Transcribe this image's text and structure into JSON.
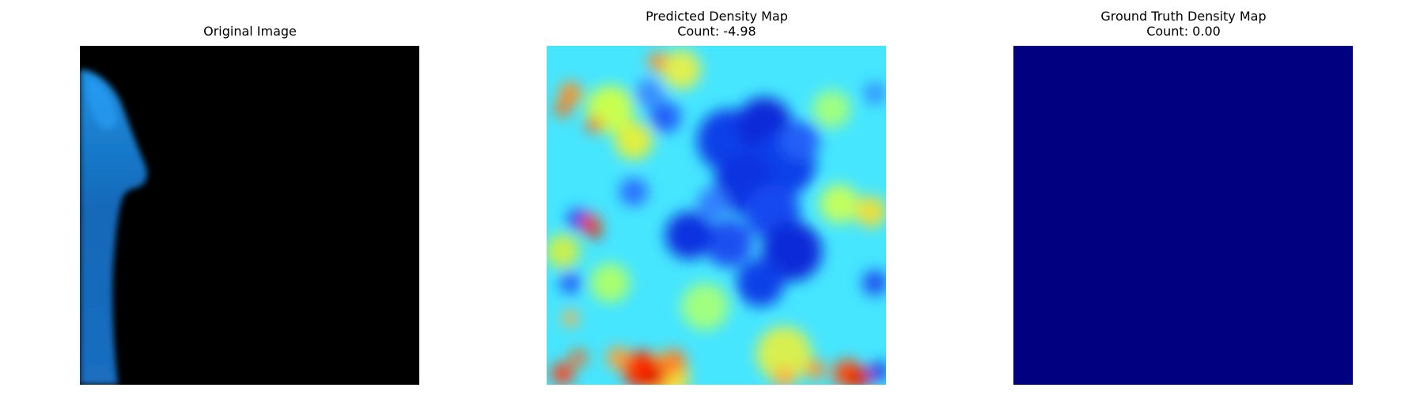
{
  "figure": {
    "panels": [
      {
        "title": "Original Image",
        "subtitle": ""
      },
      {
        "title": "Predicted Density Map",
        "subtitle": "Count: -4.98"
      },
      {
        "title": "Ground Truth Density Map",
        "subtitle": "Count: 0.00"
      }
    ]
  },
  "chart_data": [
    {
      "type": "heatmap",
      "title": "Original Image",
      "description_colors": {
        "background": "#000000",
        "silhouette": "#1a78c8"
      },
      "axes_visible": false
    },
    {
      "type": "heatmap",
      "title": "Predicted Density Map",
      "subtitle": "Count: -4.98",
      "count": -4.98,
      "colormap": "jet",
      "axes_visible": false
    },
    {
      "type": "heatmap",
      "title": "Ground Truth Density Map",
      "subtitle": "Count: 0.00",
      "count": 0.0,
      "colormap": "jet",
      "fill_color": "#000080",
      "axes_visible": false
    }
  ]
}
